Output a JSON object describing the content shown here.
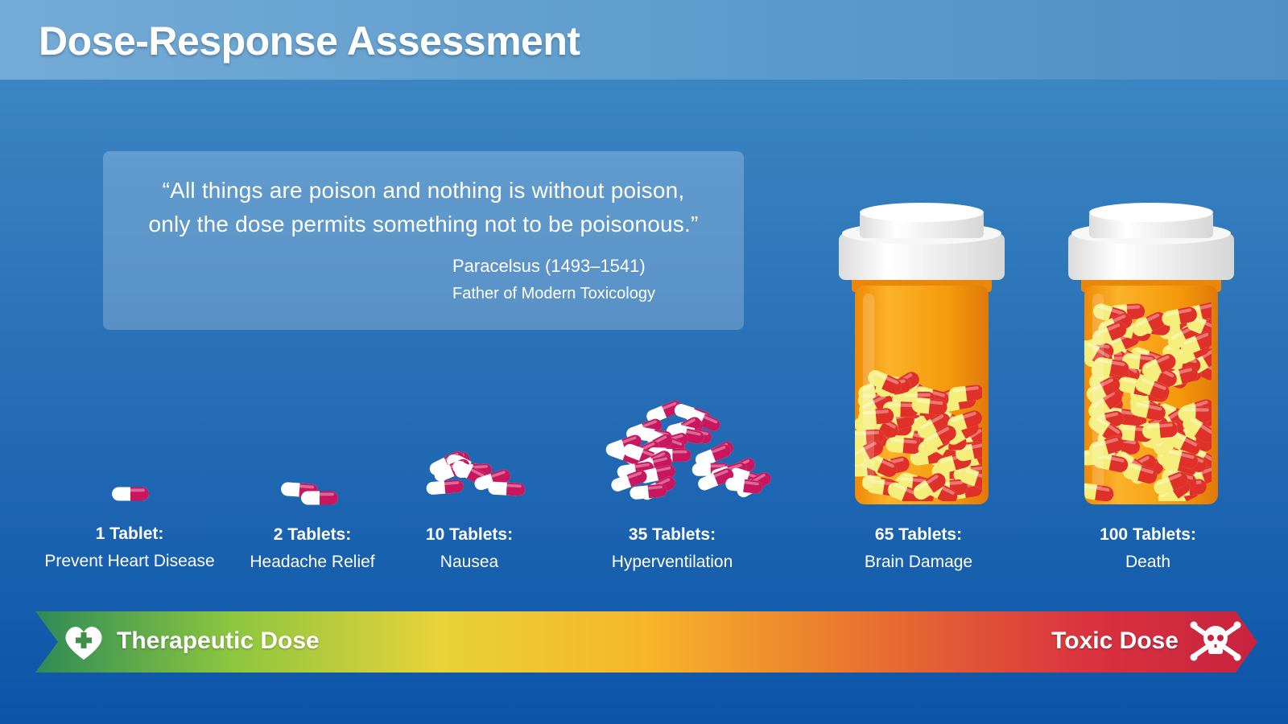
{
  "header": {
    "title": "Dose-Response Assessment"
  },
  "quote": {
    "line1": "“All things are poison and nothing is without poison,",
    "line2": "only the dose permits something not to be poisonous.”",
    "author": "Paracelsus (1493–1541)",
    "role": "Father of Modern Toxicology"
  },
  "doses": [
    {
      "amount": "1 Tablet:",
      "effect": "Prevent Heart Disease",
      "tablets": 1
    },
    {
      "amount": "2 Tablets:",
      "effect": "Headache Relief",
      "tablets": 2
    },
    {
      "amount": "10 Tablets:",
      "effect": "Nausea",
      "tablets": 10
    },
    {
      "amount": "35 Tablets:",
      "effect": "Hyperventilation",
      "tablets": 35
    },
    {
      "amount": "65 Tablets:",
      "effect": "Brain Damage",
      "tablets": 65
    },
    {
      "amount": "100 Tablets:",
      "effect": "Death",
      "tablets": 100
    }
  ],
  "scale": {
    "left_label": "Therapeutic Dose",
    "right_label": "Toxic Dose",
    "left_icon": "heart-plus-icon",
    "right_icon": "skull-crossbones-icon",
    "colors": [
      "#2e8b57",
      "#8cc63f",
      "#e8d23a",
      "#f7b52b",
      "#ea7a2e",
      "#d9333f",
      "#c8223f"
    ]
  },
  "colors": {
    "pill_magenta": "#c8175f",
    "capsule_red": "#e0302a",
    "capsule_yellow": "#f5ee7a",
    "bottle_orange": "#f59a0a",
    "cap_white": "#f2f2f2"
  }
}
